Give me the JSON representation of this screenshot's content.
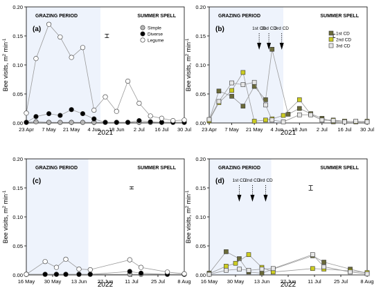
{
  "ylabel_parts": [
    "Bee visits, m",
    "2",
    " min",
    "-1"
  ],
  "chart_data": [
    {
      "type": "line",
      "panel_label": "(a)",
      "year_label": "2021",
      "period_labels": [
        "GRAZING PERIOD",
        "SUMMER SPELL"
      ],
      "x_range": [
        "2021-04-23",
        "2021-07-30"
      ],
      "grazing_end": "2021-06-08",
      "ylim": [
        0,
        0.2
      ],
      "y_ticks": [
        "0.00",
        "0.05",
        "0.10",
        "0.15",
        "0.20"
      ],
      "x_ticks": [
        {
          "date": "2021-04-23",
          "label": "23 Apr"
        },
        {
          "date": "2021-05-07",
          "label": "7 May"
        },
        {
          "date": "2021-05-21",
          "label": "21 May"
        },
        {
          "date": "2021-06-04",
          "label": "4 Jun"
        },
        {
          "date": "2021-06-18",
          "label": "18 Jun"
        },
        {
          "date": "2021-07-02",
          "label": "2 Jul"
        },
        {
          "date": "2021-07-16",
          "label": "16 Jul"
        },
        {
          "date": "2021-07-30",
          "label": "30 Jul"
        }
      ],
      "errorbar": {
        "date": "2021-06-12",
        "value": 0.15,
        "half": 0.003
      },
      "legend": [
        "Simple",
        "Diverse",
        "Legume"
      ],
      "series": [
        {
          "name": "Simple",
          "fill": "#b5b5b5",
          "x": [
            "2021-04-23",
            "2021-04-29",
            "2021-05-07",
            "2021-05-14",
            "2021-05-21",
            "2021-05-28",
            "2021-06-04",
            "2021-06-11",
            "2021-06-18",
            "2021-06-25",
            "2021-07-02",
            "2021-07-09",
            "2021-07-16",
            "2021-07-23",
            "2021-07-30"
          ],
          "y": [
            0.001,
            0.002,
            0.001,
            0.001,
            0.001,
            0.001,
            0.001,
            0.001,
            0.001,
            0.001,
            0.001,
            0.001,
            0.001,
            0.001,
            0.001
          ]
        },
        {
          "name": "Diverse",
          "fill": "#000000",
          "x": [
            "2021-04-23",
            "2021-04-29",
            "2021-05-07",
            "2021-05-14",
            "2021-05-21",
            "2021-05-28",
            "2021-06-04",
            "2021-06-11",
            "2021-06-18",
            "2021-06-25",
            "2021-07-02",
            "2021-07-09",
            "2021-07-16",
            "2021-07-23",
            "2021-07-30"
          ],
          "y": [
            0.001,
            0.011,
            0.016,
            0.013,
            0.023,
            0.016,
            0.007,
            0.001,
            0.001,
            0.001,
            0.004,
            0.002,
            0.001,
            0.001,
            0.001
          ]
        },
        {
          "name": "Legume",
          "fill": "#ffffff",
          "x": [
            "2021-04-23",
            "2021-04-29",
            "2021-05-07",
            "2021-05-14",
            "2021-05-21",
            "2021-05-28",
            "2021-06-04",
            "2021-06-11",
            "2021-06-18",
            "2021-06-25",
            "2021-07-02",
            "2021-07-09",
            "2021-07-16",
            "2021-07-23",
            "2021-07-30"
          ],
          "y": [
            0.017,
            0.111,
            0.17,
            0.148,
            0.113,
            0.13,
            0.022,
            0.045,
            0.02,
            0.072,
            0.034,
            0.012,
            0.008,
            0.004,
            0.005
          ]
        }
      ]
    },
    {
      "type": "line",
      "panel_label": "(b)",
      "year_label": "2021",
      "period_labels": [
        "GRAZING PERIOD",
        "SUMMER SPELL"
      ],
      "x_range": [
        "2021-04-23",
        "2021-07-30"
      ],
      "grazing_end": "2021-06-08",
      "ylim": [
        0,
        0.2
      ],
      "y_ticks": [
        "0.00",
        "0.05",
        "0.10",
        "0.15",
        "0.20"
      ],
      "x_ticks": [
        {
          "date": "2021-04-23",
          "label": "23 Apr"
        },
        {
          "date": "2021-05-07",
          "label": "7 May"
        },
        {
          "date": "2021-05-21",
          "label": "21 May"
        },
        {
          "date": "2021-06-04",
          "label": "4 Jun"
        },
        {
          "date": "2021-06-18",
          "label": "18 Jun"
        },
        {
          "date": "2021-07-02",
          "label": "2 Jul"
        },
        {
          "date": "2021-07-16",
          "label": "16 Jul"
        },
        {
          "date": "2021-07-30",
          "label": "30 Jul"
        }
      ],
      "errorbar": {
        "date": "2021-07-09",
        "value": 0.15,
        "half": 0.003
      },
      "legend": [
        "1st CD",
        "2nd CD",
        "3rd CD"
      ],
      "cd_arrows": [
        {
          "label": "1st CD",
          "date": "2021-05-24"
        },
        {
          "label": "2nd CD",
          "date": "2021-05-30"
        },
        {
          "label": "3rd CD",
          "date": "2021-06-07"
        }
      ],
      "series": [
        {
          "name": "1st CD",
          "fill": "#6b6b3a",
          "x": [
            "2021-04-23",
            "2021-04-29",
            "2021-05-07",
            "2021-05-14",
            "2021-05-21",
            "2021-05-28",
            "2021-06-01",
            "2021-06-11",
            "2021-06-18",
            "2021-06-25",
            "2021-07-02",
            "2021-07-09",
            "2021-07-16",
            "2021-07-23",
            "2021-07-30"
          ],
          "y": [
            0.005,
            0.055,
            0.046,
            0.029,
            0.063,
            0.04,
            0.127,
            0.015,
            0.025,
            0.016,
            0.008,
            0.002,
            0.003,
            0.002,
            0.002
          ]
        },
        {
          "name": "2nd CD",
          "fill": "#cccc22",
          "x": [
            "2021-04-23",
            "2021-04-29",
            "2021-05-07",
            "2021-05-14",
            "2021-05-21",
            "2021-05-28",
            "2021-06-01",
            "2021-06-08",
            "2021-06-18",
            "2021-06-25",
            "2021-07-02",
            "2021-07-09",
            "2021-07-16",
            "2021-07-23",
            "2021-07-30"
          ],
          "y": [
            0.004,
            0.035,
            0.056,
            0.087,
            0.003,
            0.005,
            0.007,
            0.013,
            0.04,
            0.015,
            0.005,
            0.005,
            0.003,
            0.002,
            0.003
          ]
        },
        {
          "name": "3rd CD",
          "fill": "#e6e6e6",
          "x": [
            "2021-04-23",
            "2021-04-29",
            "2021-05-07",
            "2021-05-14",
            "2021-05-21",
            "2021-05-28",
            "2021-06-01",
            "2021-06-08",
            "2021-06-18",
            "2021-06-25",
            "2021-07-02",
            "2021-07-09",
            "2021-07-16",
            "2021-07-23",
            "2021-07-30"
          ],
          "y": [
            0.006,
            0.037,
            0.069,
            0.066,
            0.07,
            0.031,
            0.005,
            0.002,
            0.014,
            0.014,
            0.005,
            0.004,
            0.002,
            0.003,
            0.002
          ]
        }
      ]
    },
    {
      "type": "line",
      "panel_label": "(c)",
      "year_label": "2022",
      "period_labels": [
        "GRAZING PERIOD",
        "SUMMER SPELL"
      ],
      "x_range": [
        "2022-05-16",
        "2022-08-08"
      ],
      "grazing_end": "2022-06-18",
      "ylim": [
        0,
        0.2
      ],
      "y_ticks": [
        "0.00",
        "0.05",
        "0.10",
        "0.15",
        "0.20"
      ],
      "x_ticks": [
        {
          "date": "2022-05-16",
          "label": "16 May"
        },
        {
          "date": "2022-05-30",
          "label": "30 May"
        },
        {
          "date": "2022-06-13",
          "label": "13 Jun"
        },
        {
          "date": "2022-06-27",
          "label": "27 Jun"
        },
        {
          "date": "2022-07-11",
          "label": "11 Jul"
        },
        {
          "date": "2022-07-25",
          "label": "25 Jul"
        },
        {
          "date": "2022-08-08",
          "label": "8 Aug"
        }
      ],
      "errorbar": {
        "date": "2022-07-11",
        "value": 0.15,
        "half": 0.002
      },
      "legend": [],
      "series": [
        {
          "name": "Simple",
          "fill": "#b5b5b5",
          "x": [
            "2022-05-16",
            "2022-05-26",
            "2022-06-01",
            "2022-06-06",
            "2022-06-13",
            "2022-06-19",
            "2022-07-10",
            "2022-07-16",
            "2022-07-30",
            "2022-08-08"
          ],
          "y": [
            0.001,
            0.001,
            0.001,
            0.001,
            0.001,
            0.001,
            0.001,
            0.001,
            0.001,
            0.001
          ]
        },
        {
          "name": "Diverse",
          "fill": "#000000",
          "x": [
            "2022-05-16",
            "2022-05-26",
            "2022-06-01",
            "2022-06-06",
            "2022-06-13",
            "2022-06-19",
            "2022-07-10",
            "2022-07-16",
            "2022-07-30",
            "2022-08-08"
          ],
          "y": [
            0.001,
            0.001,
            0.001,
            0.001,
            0.001,
            0.001,
            0.006,
            0.003,
            0.001,
            0.001
          ]
        },
        {
          "name": "Legume",
          "fill": "#ffffff",
          "x": [
            "2022-05-16",
            "2022-05-26",
            "2022-06-01",
            "2022-06-06",
            "2022-06-13",
            "2022-06-19",
            "2022-07-10",
            "2022-07-16",
            "2022-07-30",
            "2022-08-08"
          ],
          "y": [
            0.001,
            0.023,
            0.013,
            0.027,
            0.01,
            0.009,
            0.026,
            0.013,
            0.005,
            0.002
          ]
        }
      ]
    },
    {
      "type": "line",
      "panel_label": "(d)",
      "year_label": "2022",
      "period_labels": [
        "GRAZING PERIOD",
        "SUMMER SPELL"
      ],
      "x_range": [
        "2022-05-16",
        "2022-08-08"
      ],
      "grazing_end": "2022-06-18",
      "ylim": [
        0,
        0.2
      ],
      "y_ticks": [
        "0.00",
        "0.05",
        "0.10",
        "0.15",
        "0.20"
      ],
      "x_ticks": [
        {
          "date": "2022-05-16",
          "label": "16 May"
        },
        {
          "date": "2022-05-30",
          "label": "30 May"
        },
        {
          "date": "2022-06-13",
          "label": "13 Jun"
        },
        {
          "date": "2022-06-27",
          "label": "27 Jun"
        },
        {
          "date": "2022-07-11",
          "label": "11 Jul"
        },
        {
          "date": "2022-07-25",
          "label": "25 Jul"
        },
        {
          "date": "2022-08-08",
          "label": "8 Aug"
        }
      ],
      "errorbar": {
        "date": "2022-07-09",
        "value": 0.15,
        "half": 0.004
      },
      "legend": [],
      "cd_arrows": [
        {
          "label": "1st CD",
          "date": "2022-06-01"
        },
        {
          "label": "2nd CD",
          "date": "2022-06-08"
        },
        {
          "label": "3rd CD",
          "date": "2022-06-15"
        }
      ],
      "series": [
        {
          "name": "1st CD",
          "fill": "#6b6b3a",
          "x": [
            "2022-05-16",
            "2022-05-25",
            "2022-06-01",
            "2022-06-06",
            "2022-06-13",
            "2022-06-19",
            "2022-07-10",
            "2022-07-16",
            "2022-07-30",
            "2022-08-08"
          ],
          "y": [
            0.003,
            0.04,
            0.028,
            0.005,
            0.003,
            0.01,
            0.033,
            0.022,
            0.01,
            0.003
          ]
        },
        {
          "name": "2nd CD",
          "fill": "#cccc22",
          "x": [
            "2022-05-16",
            "2022-05-25",
            "2022-05-30",
            "2022-06-06",
            "2022-06-13",
            "2022-06-19",
            "2022-07-10",
            "2022-07-16",
            "2022-07-30",
            "2022-08-08"
          ],
          "y": [
            0.002,
            0.015,
            0.02,
            0.035,
            0.013,
            0.005,
            0.011,
            0.01,
            0.007,
            0.004
          ]
        },
        {
          "name": "3rd CD",
          "fill": "#e6e6e6",
          "x": [
            "2022-05-16",
            "2022-05-25",
            "2022-06-01",
            "2022-06-06",
            "2022-06-13",
            "2022-06-19",
            "2022-07-10",
            "2022-07-16",
            "2022-07-30",
            "2022-08-08"
          ],
          "y": [
            0.001,
            0.008,
            0.01,
            0.008,
            0.01,
            0.011,
            0.035,
            0.014,
            0.005,
            0.002
          ]
        }
      ]
    }
  ]
}
